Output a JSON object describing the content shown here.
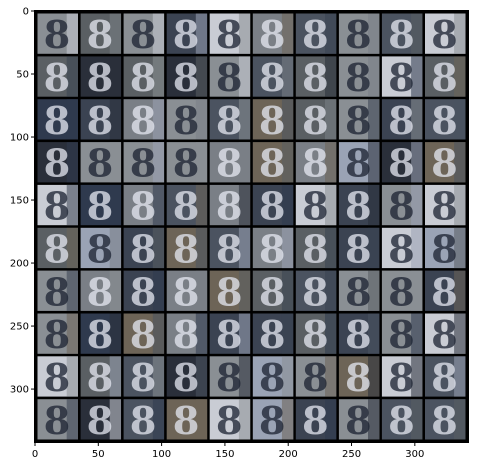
{
  "grid": {
    "rows": 10,
    "cols": 10,
    "sample_label": "8"
  },
  "x_ticks": [
    "0",
    "50",
    "100",
    "150",
    "200",
    "250",
    "300"
  ],
  "y_ticks": [
    "0",
    "50",
    "100",
    "150",
    "200",
    "250",
    "300"
  ],
  "axis": {
    "xlim": [
      0,
      342
    ],
    "ylim": [
      342,
      0
    ]
  },
  "colors": {
    "frame": "#000000",
    "tile_palette": [
      "#3b4352",
      "#5a5f63",
      "#7a7f86",
      "#2f3a4e",
      "#8a8f94",
      "#c9ccd4",
      "#4b5360",
      "#6d6457",
      "#9aa3b5",
      "#2a2f3a"
    ],
    "digit_dark": "#1a2130",
    "digit_light": "#e6e9f2"
  }
}
